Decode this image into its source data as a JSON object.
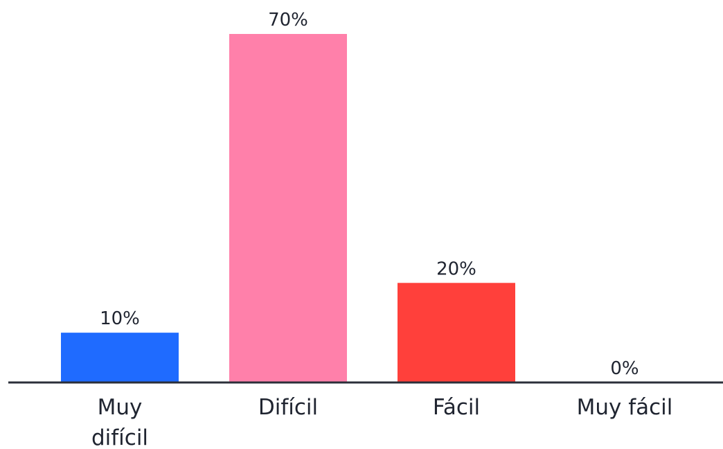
{
  "chart_data": {
    "type": "bar",
    "title": "",
    "xlabel": "",
    "ylabel": "",
    "ylim": [
      0,
      70
    ],
    "categories": [
      "Muy difícil",
      "Difícil",
      "Fácil",
      "Muy fácil"
    ],
    "category_lines": [
      [
        "Muy",
        "difícil"
      ],
      [
        "Difícil"
      ],
      [
        "Fácil"
      ],
      [
        "Muy fácil"
      ]
    ],
    "values": [
      10,
      70,
      20,
      0
    ],
    "value_labels": [
      "10%",
      "70%",
      "20%",
      "0%"
    ],
    "colors": [
      "#1f6bff",
      "#ff80aa",
      "#ff403b",
      "#ff80aa"
    ],
    "grid": false,
    "legend": "none",
    "axis_color": "#2b2f3a"
  }
}
